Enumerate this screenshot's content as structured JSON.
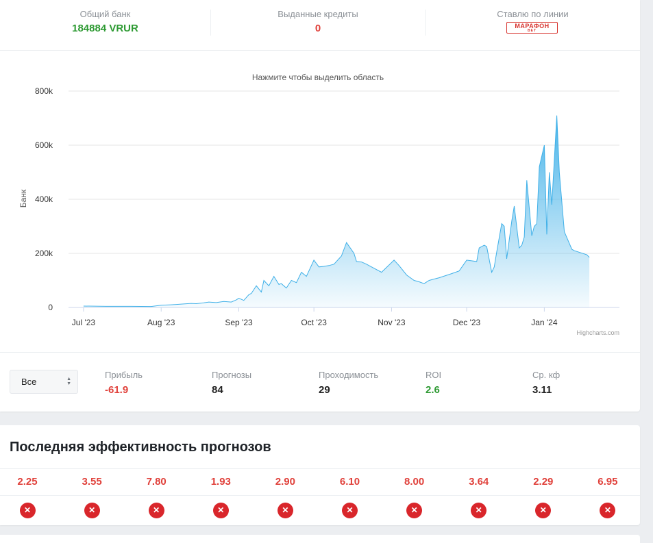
{
  "header": {
    "bank_label": "Общий банк",
    "bank_value": "184884 VRUR",
    "credits_label": "Выданные кредиты",
    "credits_value": "0",
    "line_label": "Ставлю по линии",
    "bookmaker_logo_text": "МАРАФОН",
    "bookmaker_logo_sub": "BET"
  },
  "chart_data": {
    "type": "area",
    "title": "Нажмите чтобы выделить область",
    "ylabel": "Банк",
    "xlabel": "",
    "ylim": [
      0,
      800000
    ],
    "y_ticks": [
      "0",
      "200k",
      "400k",
      "600k",
      "800k"
    ],
    "x_ticks": [
      "Jul '23",
      "Aug '23",
      "Sep '23",
      "Oct '23",
      "Nov '23",
      "Dec '23",
      "Jan '24"
    ],
    "credits": "Highcharts.com",
    "grid": true,
    "legend": "none",
    "color": "#3fb0e8",
    "x": [
      "2023-07-01",
      "2023-07-10",
      "2023-07-20",
      "2023-07-28",
      "2023-08-01",
      "2023-08-05",
      "2023-08-10",
      "2023-08-13",
      "2023-08-15",
      "2023-08-18",
      "2023-08-20",
      "2023-08-23",
      "2023-08-26",
      "2023-08-29",
      "2023-08-31",
      "2023-09-01",
      "2023-09-03",
      "2023-09-05",
      "2023-09-06",
      "2023-09-08",
      "2023-09-10",
      "2023-09-11",
      "2023-09-13",
      "2023-09-15",
      "2023-09-17",
      "2023-09-18",
      "2023-09-20",
      "2023-09-22",
      "2023-09-24",
      "2023-09-26",
      "2023-09-28",
      "2023-10-01",
      "2023-10-03",
      "2023-10-05",
      "2023-10-07",
      "2023-10-09",
      "2023-10-12",
      "2023-10-14",
      "2023-10-17",
      "2023-10-18",
      "2023-10-20",
      "2023-10-22",
      "2023-10-23",
      "2023-10-28",
      "2023-11-02",
      "2023-11-04",
      "2023-11-07",
      "2023-11-10",
      "2023-11-12",
      "2023-11-14",
      "2023-11-16",
      "2023-11-20",
      "2023-11-25",
      "2023-11-28",
      "2023-12-01",
      "2023-12-05",
      "2023-12-06",
      "2023-12-08",
      "2023-12-09",
      "2023-12-11",
      "2023-12-12",
      "2023-12-13",
      "2023-12-15",
      "2023-12-16",
      "2023-12-17",
      "2023-12-19",
      "2023-12-20",
      "2023-12-22",
      "2023-12-23",
      "2023-12-24",
      "2023-12-25",
      "2023-12-27",
      "2023-12-28",
      "2023-12-29",
      "2023-12-30",
      "2024-01-01",
      "2024-01-02",
      "2024-01-03",
      "2024-01-04",
      "2024-01-06",
      "2024-01-07",
      "2024-01-09",
      "2024-01-12",
      "2024-01-13",
      "2024-01-18",
      "2024-01-19"
    ],
    "y": [
      5000,
      4000,
      4000,
      3500,
      8000,
      10000,
      13000,
      15000,
      14000,
      17000,
      20000,
      18000,
      22000,
      20000,
      28000,
      34000,
      26000,
      47000,
      52000,
      80000,
      57000,
      100000,
      80000,
      115000,
      85000,
      88000,
      72000,
      100000,
      92000,
      130000,
      115000,
      175000,
      150000,
      152000,
      155000,
      160000,
      190000,
      240000,
      200000,
      170000,
      168000,
      160000,
      155000,
      130000,
      175000,
      155000,
      120000,
      100000,
      95000,
      88000,
      100000,
      110000,
      125000,
      135000,
      175000,
      170000,
      220000,
      230000,
      225000,
      130000,
      150000,
      205000,
      310000,
      300000,
      180000,
      320000,
      375000,
      220000,
      230000,
      260000,
      470000,
      265000,
      300000,
      310000,
      520000,
      600000,
      270000,
      500000,
      380000,
      710000,
      500000,
      280000,
      215000,
      210000,
      195000,
      185000
    ]
  },
  "filter": {
    "select_value": "Все",
    "profit_label": "Прибыль",
    "profit_value": "-61.9",
    "tips_label": "Прогнозы",
    "tips_value": "84",
    "pass_label": "Проходимость",
    "pass_value": "29",
    "roi_label": "ROI",
    "roi_value": "2.6",
    "avg_label": "Ср. кф",
    "avg_value": "3.11"
  },
  "performance": {
    "title": "Последняя эффективность прогнозов",
    "odds": [
      "2.25",
      "3.55",
      "7.80",
      "1.93",
      "2.90",
      "6.10",
      "8.00",
      "3.64",
      "2.29",
      "6.95"
    ],
    "result_icon": "cross-icon",
    "status_color": "#d9262b"
  }
}
